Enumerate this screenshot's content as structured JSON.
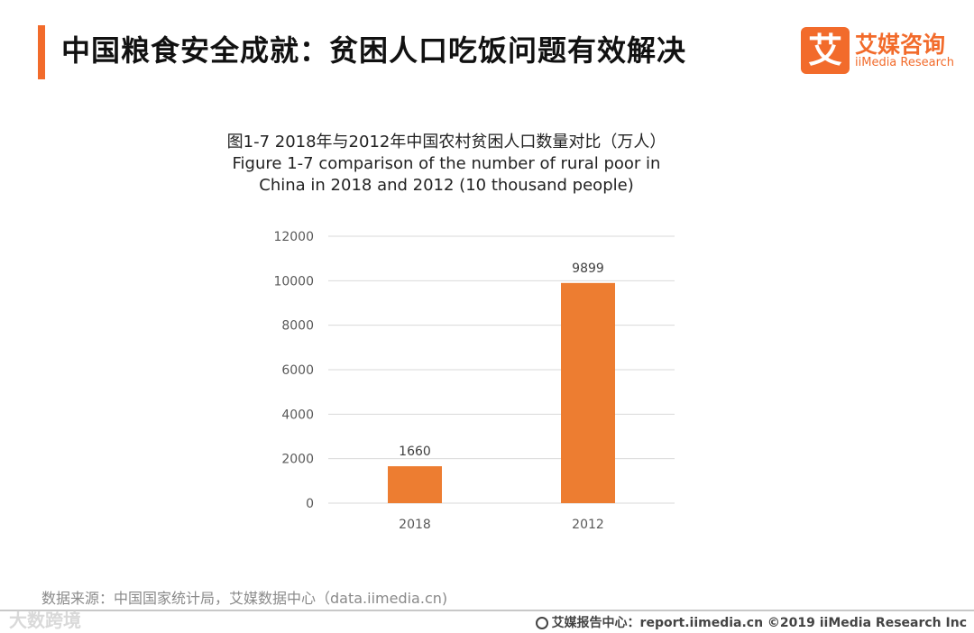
{
  "header": {
    "title": "中国粮食安全成就：贫困人口吃饭问题有效解决",
    "logo_mark": "艾",
    "logo_cn": "艾媒咨询",
    "logo_en": "iiMedia Research"
  },
  "chart_data": {
    "type": "bar",
    "title_cn": "图1-7 2018年与2012年中国农村贫困人口数量对比（万人）",
    "title_en_line1": "Figure 1-7 comparison of the number of rural poor in",
    "title_en_line2": "China in 2018 and 2012 (10 thousand people)",
    "categories": [
      "2018",
      "2012"
    ],
    "values": [
      1660,
      9899
    ],
    "data_labels": [
      "1660",
      "9899"
    ],
    "ylim": [
      0,
      12000
    ],
    "yticks": [
      "0",
      "2000",
      "4000",
      "6000",
      "8000",
      "10000",
      "12000"
    ],
    "grid": true,
    "bar_color": "#ed7d31"
  },
  "footer": {
    "source": "数据来源：中国国家统计局，艾媒数据中心（data.iimedia.cn)",
    "watermark": "大数跨境",
    "copyright": "艾媒报告中心：report.iimedia.cn ©2019 iiMedia Research Inc"
  }
}
